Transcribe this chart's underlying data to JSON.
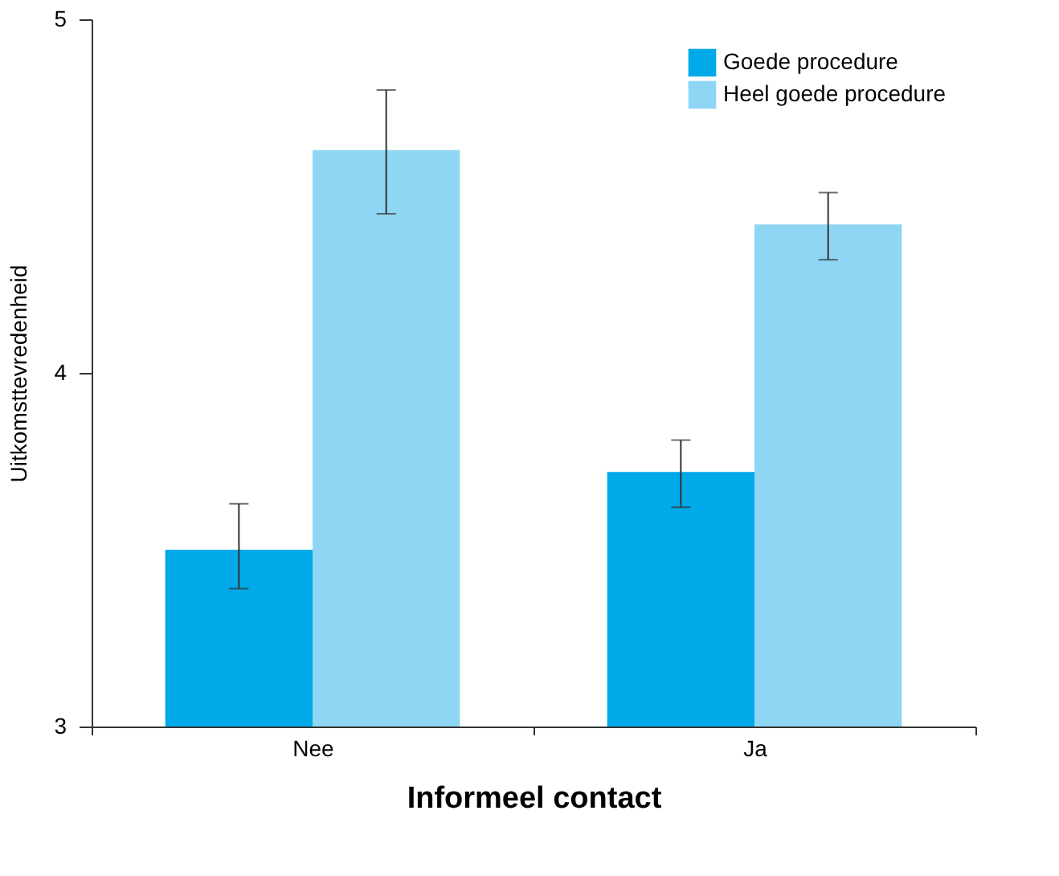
{
  "chart_data": {
    "type": "bar",
    "xlabel": "Informeel contact",
    "ylabel": "Uitkomsttevredenheid",
    "categories": [
      "Nee",
      "Ja"
    ],
    "series": [
      {
        "name": "Goede procedure",
        "color": "#00a9e8",
        "values": [
          3.5,
          3.72
        ],
        "errors": [
          [
            3.39,
            3.63
          ],
          [
            3.62,
            3.81
          ]
        ]
      },
      {
        "name": "Heel goede procedure",
        "color": "#8fd6f4",
        "values": [
          4.63,
          4.42
        ],
        "errors": [
          [
            4.45,
            4.8
          ],
          [
            4.32,
            4.51
          ]
        ]
      }
    ],
    "ylim": [
      3,
      5
    ],
    "yticks": [
      3,
      4,
      5
    ],
    "grid": false,
    "legend": "top right"
  }
}
